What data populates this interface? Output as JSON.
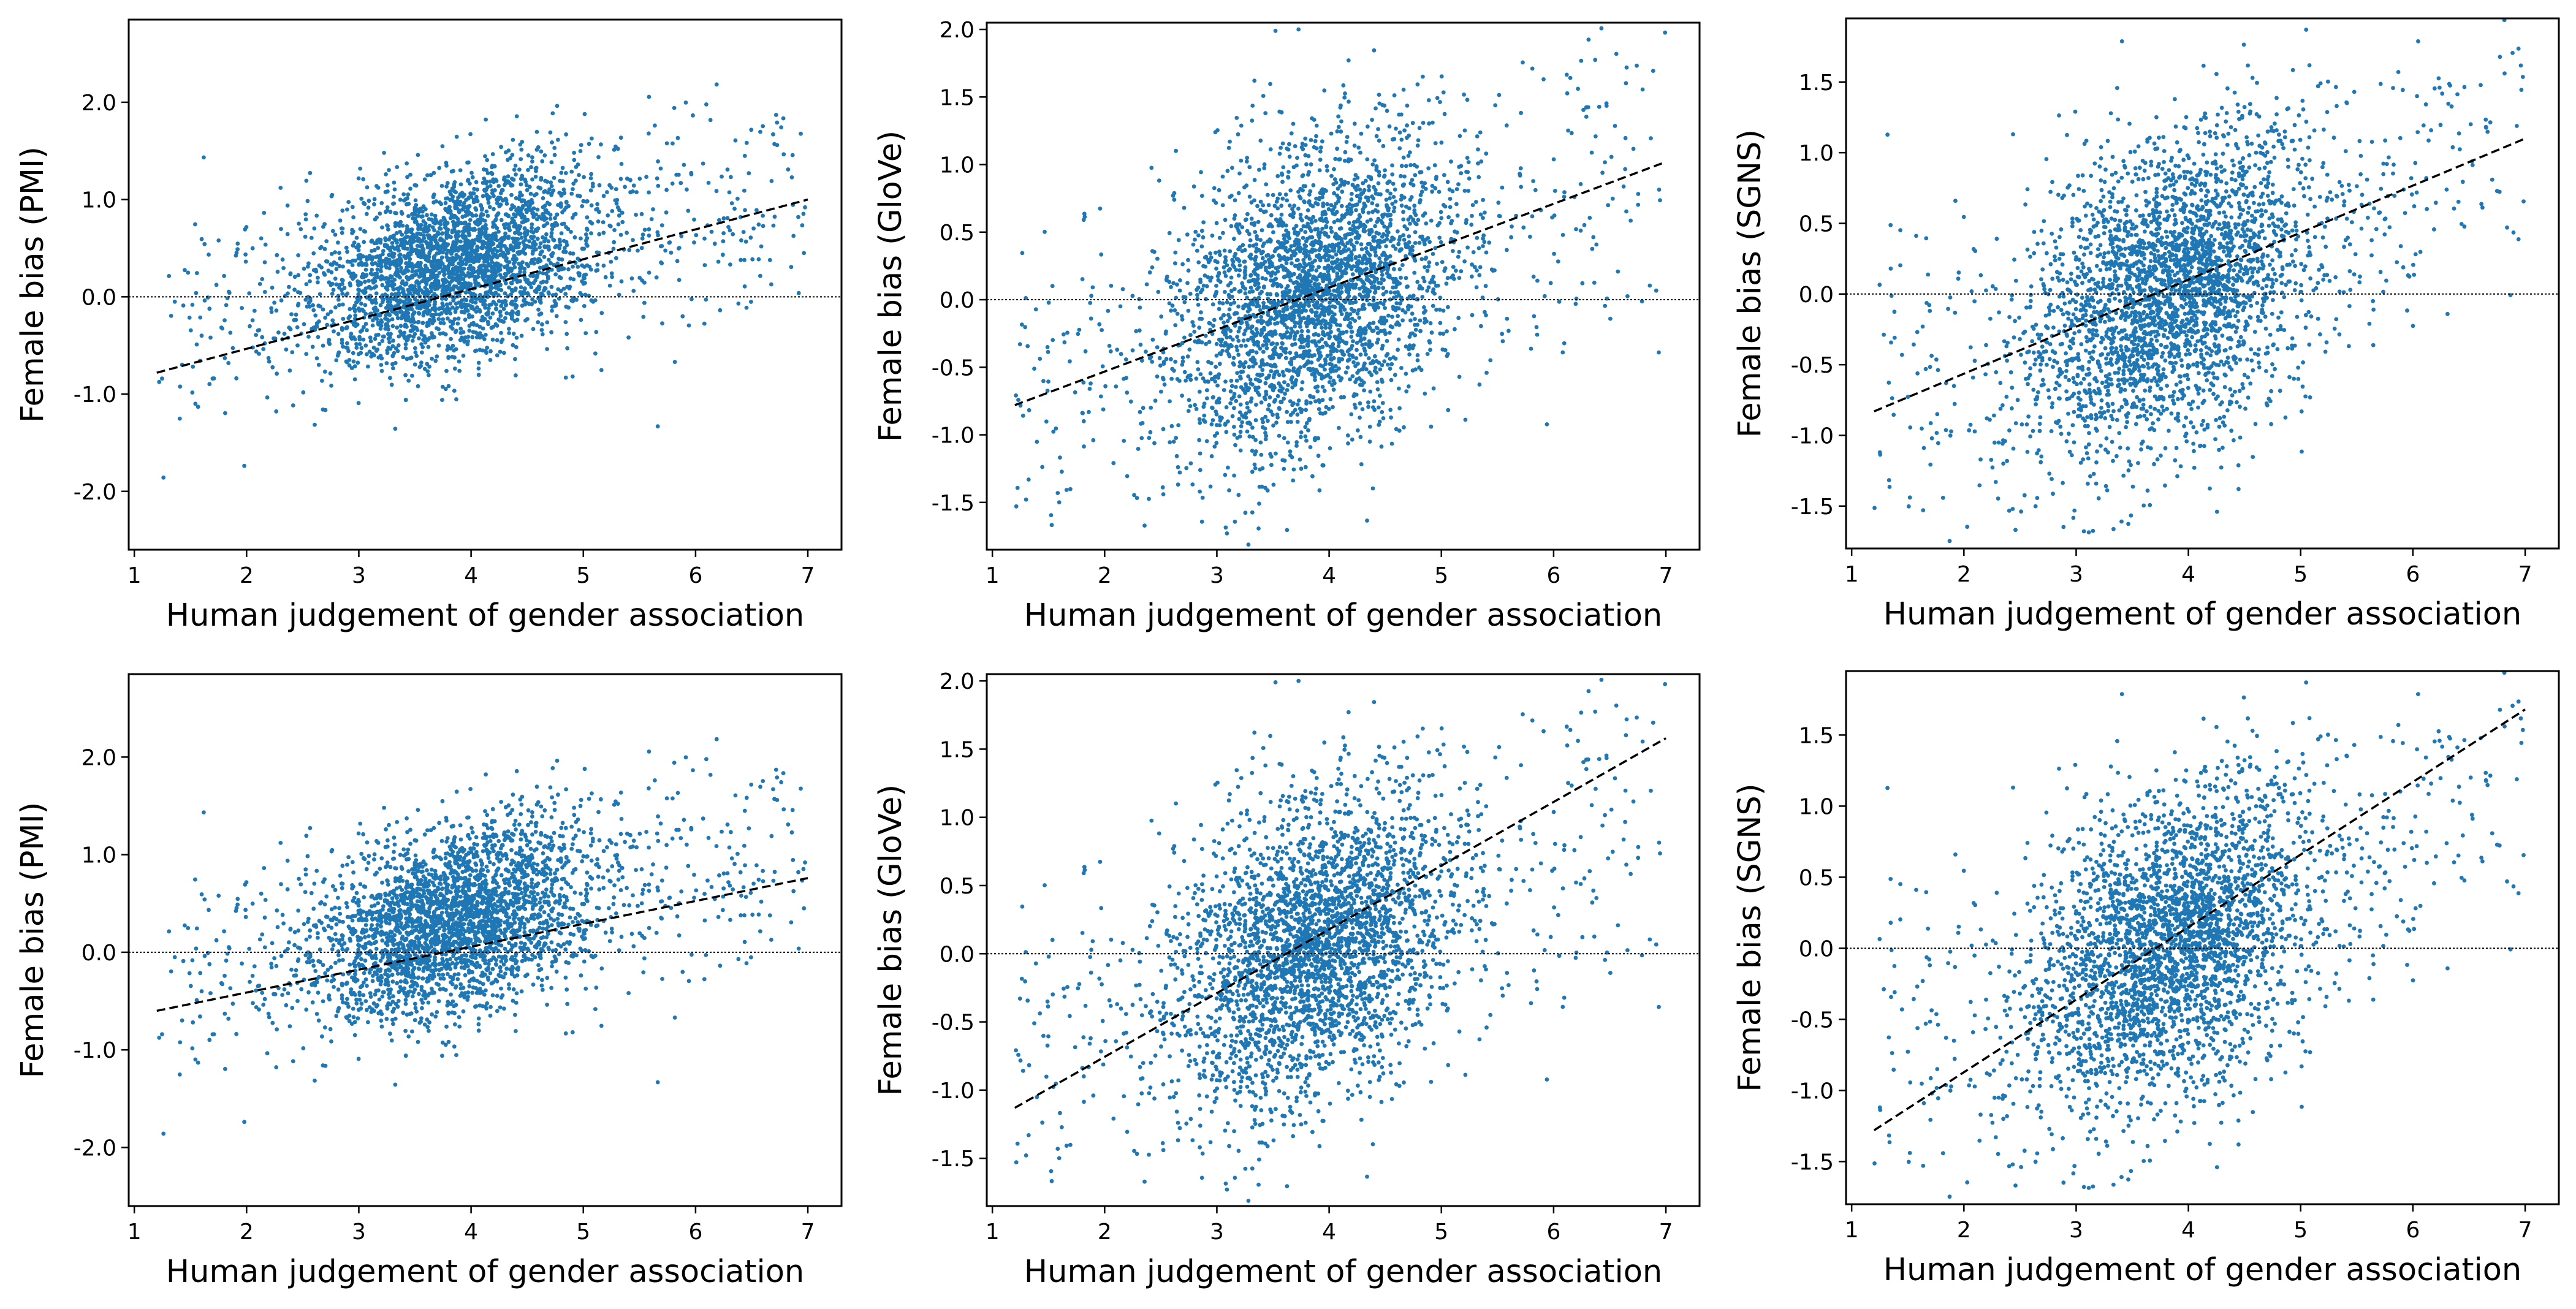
{
  "chart_data": [
    {
      "id": "pmi-top",
      "type": "scatter",
      "xlabel": "Human judgement of gender association",
      "ylabel": "Female bias (PMI)",
      "xlim": [
        0.95,
        7.3
      ],
      "ylim": [
        -2.6,
        2.85
      ],
      "xticks": [
        1,
        2,
        3,
        4,
        5,
        6,
        7
      ],
      "xtick_labels": [
        "1",
        "2",
        "3",
        "4",
        "5",
        "6",
        "7"
      ],
      "yticks": [
        -2,
        -1,
        0,
        1,
        2
      ],
      "ytick_labels": [
        "-2.0",
        "-1.0",
        "0.0",
        "1.0",
        "2.0"
      ],
      "fit_line": {
        "x": [
          1.2,
          7.0
        ],
        "y": [
          -0.78,
          1.0
        ]
      },
      "reference_line_y": 0.0,
      "point_cloud": {
        "count": 3200,
        "x_center": 3.85,
        "y_base": -0.65,
        "y_slope": 0.25,
        "y_spread": 0.45
      }
    },
    {
      "id": "glove-top",
      "type": "scatter",
      "xlabel": "Human judgement of gender association",
      "ylabel": "Female bias (GloVe)",
      "xlim": [
        0.95,
        7.3
      ],
      "ylim": [
        -1.85,
        2.05
      ],
      "xticks": [
        1,
        2,
        3,
        4,
        5,
        6,
        7
      ],
      "xtick_labels": [
        "1",
        "2",
        "3",
        "4",
        "5",
        "6",
        "7"
      ],
      "yticks": [
        -1.5,
        -1,
        -0.5,
        0,
        0.5,
        1,
        1.5,
        2
      ],
      "ytick_labels": [
        "-1.5",
        "-1.0",
        "-0.5",
        "0.0",
        "0.5",
        "1.0",
        "1.5",
        "2.0"
      ],
      "fit_line": {
        "x": [
          1.2,
          7.0
        ],
        "y": [
          -0.78,
          1.02
        ]
      },
      "reference_line_y": 0.0,
      "point_cloud": {
        "count": 3200,
        "x_center": 3.85,
        "y_base": -1.2,
        "y_slope": 0.32,
        "y_spread": 0.52
      }
    },
    {
      "id": "sgns-top",
      "type": "scatter",
      "xlabel": "Human judgement of gender association",
      "ylabel": "Female bias (SGNS)",
      "xlim": [
        0.95,
        7.3
      ],
      "ylim": [
        -1.8,
        1.95
      ],
      "xticks": [
        1,
        2,
        3,
        4,
        5,
        6,
        7
      ],
      "xtick_labels": [
        "1",
        "2",
        "3",
        "4",
        "5",
        "6",
        "7"
      ],
      "yticks": [
        -1.5,
        -1,
        -0.5,
        0,
        0.5,
        1,
        1.5
      ],
      "ytick_labels": [
        "-1.5",
        "-1.0",
        "-0.5",
        "0.0",
        "0.5",
        "1.0",
        "1.5"
      ],
      "fit_line": {
        "x": [
          1.2,
          7.0
        ],
        "y": [
          -0.83,
          1.1
        ]
      },
      "reference_line_y": 0.0,
      "point_cloud": {
        "count": 3200,
        "x_center": 3.85,
        "y_base": -1.25,
        "y_slope": 0.33,
        "y_spread": 0.5
      }
    },
    {
      "id": "pmi-bottom",
      "type": "scatter",
      "xlabel": "Human judgement of gender association",
      "ylabel": "Female bias (PMI)",
      "xlim": [
        0.95,
        7.3
      ],
      "ylim": [
        -2.6,
        2.85
      ],
      "xticks": [
        1,
        2,
        3,
        4,
        5,
        6,
        7
      ],
      "xtick_labels": [
        "1",
        "2",
        "3",
        "4",
        "5",
        "6",
        "7"
      ],
      "yticks": [
        -2,
        -1,
        0,
        1,
        2
      ],
      "ytick_labels": [
        "-2.0",
        "-1.0",
        "0.0",
        "1.0",
        "2.0"
      ],
      "fit_line": {
        "x": [
          1.2,
          7.0
        ],
        "y": [
          -0.6,
          0.76
        ]
      },
      "reference_line_y": 0.0,
      "point_cloud": {
        "count": 3200,
        "x_center": 3.85,
        "y_base": -0.65,
        "y_slope": 0.25,
        "y_spread": 0.45
      }
    },
    {
      "id": "glove-bottom",
      "type": "scatter",
      "xlabel": "Human judgement of gender association",
      "ylabel": "Female bias (GloVe)",
      "xlim": [
        0.95,
        7.3
      ],
      "ylim": [
        -1.85,
        2.05
      ],
      "xticks": [
        1,
        2,
        3,
        4,
        5,
        6,
        7
      ],
      "xtick_labels": [
        "1",
        "2",
        "3",
        "4",
        "5",
        "6",
        "7"
      ],
      "yticks": [
        -1.5,
        -1,
        -0.5,
        0,
        0.5,
        1,
        1.5,
        2
      ],
      "ytick_labels": [
        "-1.5",
        "-1.0",
        "-0.5",
        "0.0",
        "0.5",
        "1.0",
        "1.5",
        "2.0"
      ],
      "fit_line": {
        "x": [
          1.2,
          7.0
        ],
        "y": [
          -1.13,
          1.58
        ]
      },
      "reference_line_y": 0.0,
      "point_cloud": {
        "count": 3200,
        "x_center": 3.85,
        "y_base": -1.2,
        "y_slope": 0.32,
        "y_spread": 0.52
      }
    },
    {
      "id": "sgns-bottom",
      "type": "scatter",
      "xlabel": "Human judgement of gender association",
      "ylabel": "Female bias (SGNS)",
      "xlim": [
        0.95,
        7.3
      ],
      "ylim": [
        -1.8,
        1.95
      ],
      "xticks": [
        1,
        2,
        3,
        4,
        5,
        6,
        7
      ],
      "xtick_labels": [
        "1",
        "2",
        "3",
        "4",
        "5",
        "6",
        "7"
      ],
      "yticks": [
        -1.5,
        -1,
        -0.5,
        0,
        0.5,
        1,
        1.5
      ],
      "ytick_labels": [
        "-1.5",
        "-1.0",
        "-0.5",
        "0.0",
        "0.5",
        "1.0",
        "1.5"
      ],
      "fit_line": {
        "x": [
          1.2,
          7.0
        ],
        "y": [
          -1.28,
          1.68
        ]
      },
      "reference_line_y": 0.0,
      "point_cloud": {
        "count": 3200,
        "x_center": 3.85,
        "y_base": -1.25,
        "y_slope": 0.33,
        "y_spread": 0.5
      }
    }
  ],
  "colors": {
    "points": "#1f77b4",
    "fit_line": "#000000",
    "axes": "#000000"
  }
}
